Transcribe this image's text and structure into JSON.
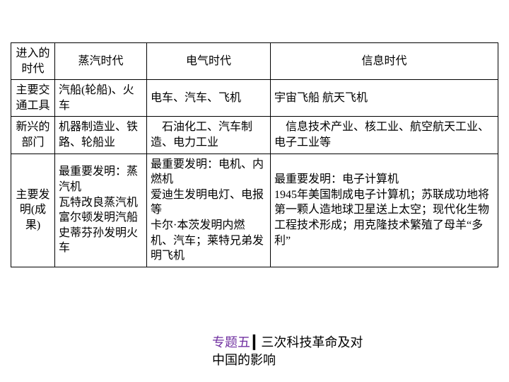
{
  "table": {
    "columns": [
      "进入的时代",
      "蒸汽时代",
      "电气时代",
      "信息时代"
    ],
    "rows": {
      "transport": {
        "label": "主要交通工具",
        "steam": "汽船(轮船)、火车",
        "electric": "电车、汽车、飞机",
        "info": "宇宙飞船 航天飞机"
      },
      "sectors": {
        "label": "新兴的部门",
        "steam": "机器制造业、铁路、轮船业",
        "electric": "　石油化工、汽车制造、电力工业",
        "info": "　信息技术产业、核工业、航空航天工业、电子工业等"
      },
      "inventions": {
        "label": "主要发明(成果)",
        "steam": "最重要发明：蒸汽机\n瓦特改良蒸汽机\n富尔顿发明汽船\n史蒂芬孙发明火车",
        "electric": "最重要发明：电机、内燃机\n爱迪生发明电灯、电报等\n卡尔·本茨发明内燃机、汽车；莱特兄弟发明飞机",
        "info": "最重要发明：电子计算机\n1945年美国制成电子计算机；苏联成功地将第一颗人造地球卫星送上太空；现代化生物工程技术形成；用克隆技术繁殖了母羊“多利”"
      }
    },
    "border_color": "#000000",
    "text_color": "#000000",
    "font_size": 16
  },
  "footer": {
    "topic_label": "专题五",
    "divider": "┃",
    "text_line1": " 三次科技革命及对",
    "text_line2": "中国的影响",
    "topic_color": "#7030a0"
  }
}
